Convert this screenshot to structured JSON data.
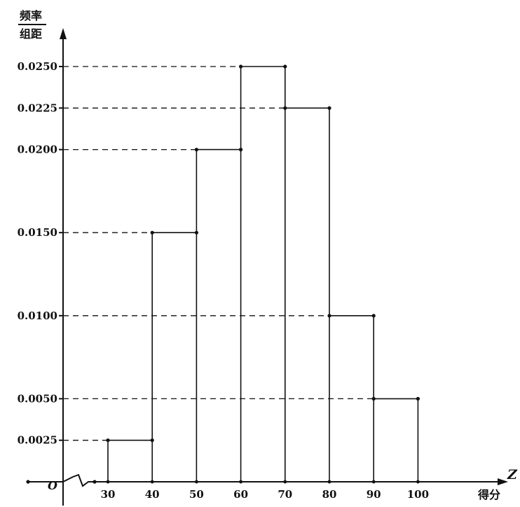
{
  "chart_data": {
    "type": "bar",
    "bin_edges": [
      30,
      40,
      50,
      60,
      70,
      80,
      90,
      100
    ],
    "values": [
      0.0025,
      0.015,
      0.02,
      0.025,
      0.0225,
      0.01,
      0.005
    ],
    "y_ticks": [
      "0.0025",
      "0.0050",
      "0.0100",
      "0.0150",
      "0.0200",
      "0.0225",
      "0.0250"
    ],
    "x_ticks": [
      "30",
      "40",
      "50",
      "60",
      "70",
      "80",
      "90",
      "100"
    ],
    "ylabel_top": "频率",
    "ylabel_bottom": "组距",
    "xlabel": "得分",
    "x_axis_letter": "Z",
    "origin_label": "O",
    "grid": false,
    "axis_break": true
  }
}
